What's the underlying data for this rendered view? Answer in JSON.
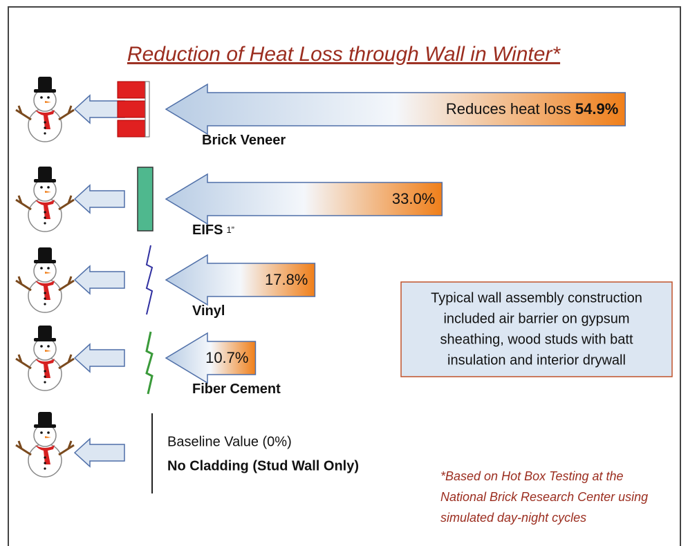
{
  "chart_data": {
    "type": "arrow-bar",
    "title": "Reduction of Heat Loss through Wall in Winter*",
    "categories": [
      "Brick Veneer",
      "EIFS",
      "Vinyl",
      "Fiber Cement"
    ],
    "category_notes": [
      null,
      "1”",
      null,
      null
    ],
    "values": [
      54.9,
      33.0,
      17.8,
      10.7
    ],
    "value_labels": [
      "54.9%",
      "33.0%",
      "17.8%",
      "10.7%"
    ],
    "value_label_prefix": "Reduces heat loss",
    "baseline": {
      "label": "Baseline Value (0%)",
      "name": "No Cladding (Stud Wall Only)"
    },
    "note": [
      "Typical wall assembly construction",
      "included air barrier on gypsum",
      "sheathing, wood studs with batt",
      "insulation and interior drywall"
    ],
    "footnote": [
      "*Based on Hot Box Testing at the",
      "National Brick Research Center using",
      "simulated day-night cycles"
    ]
  }
}
